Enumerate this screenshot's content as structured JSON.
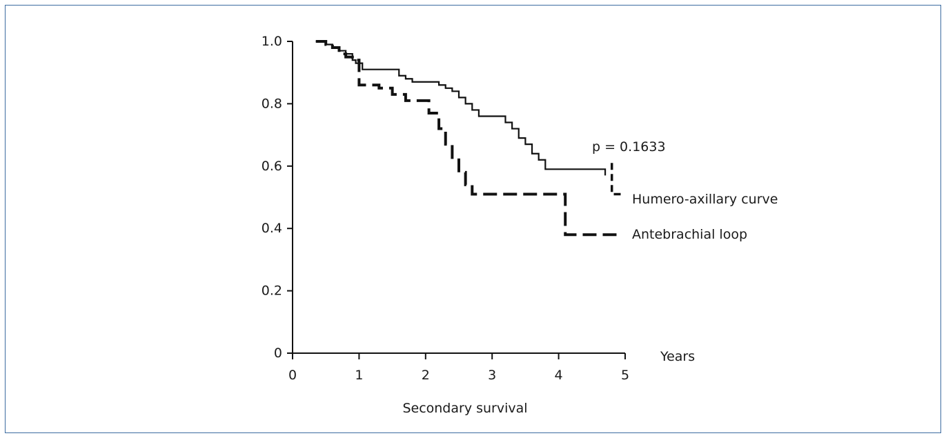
{
  "chart_data": {
    "type": "line",
    "xlabel": "Years",
    "caption": "Secondary survival",
    "annotation": "p = 0.1633",
    "xlim": [
      0,
      5
    ],
    "ylim": [
      0,
      1.0
    ],
    "xticks": [
      0,
      1,
      2,
      3,
      4,
      5
    ],
    "xtick_labels": [
      "0",
      "1",
      "2",
      "3",
      "4",
      "5"
    ],
    "yticks": [
      0,
      0.2,
      0.4,
      0.6,
      0.8,
      1.0
    ],
    "ytick_labels": [
      "0",
      "0.2",
      "0.4",
      "0.6",
      "0.8",
      "1.0"
    ],
    "grid": false,
    "series": [
      {
        "name": "Humero-axillary curve",
        "style": "solid",
        "color": "#111111",
        "x": [
          0.35,
          0.5,
          0.6,
          0.7,
          0.8,
          0.9,
          0.95,
          1.05,
          1.6,
          1.7,
          1.8,
          2.2,
          2.3,
          2.4,
          2.5,
          2.6,
          2.7,
          2.8,
          3.2,
          3.3,
          3.4,
          3.5,
          3.6,
          3.7,
          3.8,
          4.7
        ],
        "y": [
          1.0,
          0.99,
          0.98,
          0.97,
          0.96,
          0.94,
          0.93,
          0.91,
          0.89,
          0.88,
          0.87,
          0.86,
          0.85,
          0.84,
          0.82,
          0.8,
          0.78,
          0.76,
          0.74,
          0.72,
          0.69,
          0.67,
          0.64,
          0.62,
          0.59,
          0.57
        ]
      },
      {
        "name": "Antebrachial loop",
        "style": "dashed",
        "color": "#111111",
        "x": [
          0.35,
          0.5,
          0.6,
          0.7,
          0.8,
          0.9,
          1.0,
          1.3,
          1.5,
          1.7,
          2.05,
          2.2,
          2.3,
          2.4,
          2.5,
          2.6,
          2.7,
          4.1,
          4.95
        ],
        "y": [
          1.0,
          0.99,
          0.98,
          0.96,
          0.95,
          0.94,
          0.86,
          0.85,
          0.83,
          0.81,
          0.77,
          0.72,
          0.67,
          0.62,
          0.58,
          0.54,
          0.51,
          0.38,
          0.38
        ]
      }
    ],
    "humero_tail": {
      "x": [
        4.8,
        4.95
      ],
      "y": [
        0.61,
        0.51
      ]
    }
  }
}
